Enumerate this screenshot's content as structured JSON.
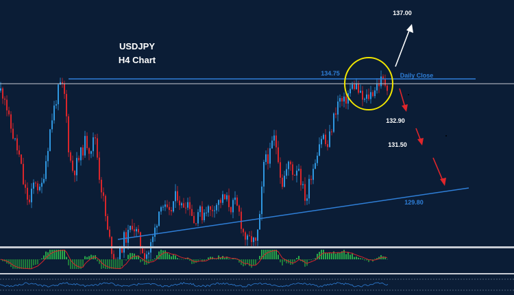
{
  "chart_data": {
    "type": "candlestick",
    "title": "USDJPY",
    "subtitle": "H4 Chart",
    "colors": {
      "background": "#0b1d36",
      "bull": "#2f97e0",
      "bear": "#d9262b",
      "resistance": "#2f7fd8",
      "trendline": "#2f7fd8",
      "circle": "#f2e600",
      "up_arrow": "#ffffff",
      "down_arrow": "#e0262b",
      "osc_pos": "#28a84a",
      "osc_neg": "#1f7a3a",
      "osc_signal": "#d9262b"
    },
    "price_path": [
      [
        0,
        134.45
      ],
      [
        6,
        134.3
      ],
      [
        12,
        133.5
      ],
      [
        20,
        132.9
      ],
      [
        28,
        132.3
      ],
      [
        34,
        131.4
      ],
      [
        42,
        130.9
      ],
      [
        50,
        131.7
      ],
      [
        58,
        131.2
      ],
      [
        66,
        132.3
      ],
      [
        74,
        133.5
      ],
      [
        82,
        134.3
      ],
      [
        88,
        134.65
      ],
      [
        94,
        134.2
      ],
      [
        100,
        132.4
      ],
      [
        106,
        131.9
      ],
      [
        112,
        132.2
      ],
      [
        118,
        132.5
      ],
      [
        124,
        132.9
      ],
      [
        130,
        132.6
      ],
      [
        138,
        133.0
      ],
      [
        144,
        131.8
      ],
      [
        150,
        131.0
      ],
      [
        156,
        130.0
      ],
      [
        162,
        129.5
      ],
      [
        168,
        129.1
      ],
      [
        174,
        129.35
      ],
      [
        180,
        129.8
      ],
      [
        186,
        129.9
      ],
      [
        192,
        130.3
      ],
      [
        198,
        130.0
      ],
      [
        204,
        129.6
      ],
      [
        210,
        129.35
      ],
      [
        216,
        129.4
      ],
      [
        222,
        129.8
      ],
      [
        228,
        130.4
      ],
      [
        234,
        131.0
      ],
      [
        240,
        130.7
      ],
      [
        246,
        130.5
      ],
      [
        252,
        130.95
      ],
      [
        258,
        131.2
      ],
      [
        264,
        130.8
      ],
      [
        270,
        131.0
      ],
      [
        276,
        130.9
      ],
      [
        282,
        130.3
      ],
      [
        288,
        130.7
      ],
      [
        294,
        130.55
      ],
      [
        300,
        130.8
      ],
      [
        306,
        130.65
      ],
      [
        312,
        130.9
      ],
      [
        318,
        130.95
      ],
      [
        324,
        131.05
      ],
      [
        330,
        131.0
      ],
      [
        336,
        130.8
      ],
      [
        342,
        130.9
      ],
      [
        348,
        130.6
      ],
      [
        354,
        130.0
      ],
      [
        360,
        129.7
      ],
      [
        366,
        129.8
      ],
      [
        372,
        129.6
      ],
      [
        378,
        130.4
      ],
      [
        382,
        131.6
      ],
      [
        386,
        132.5
      ],
      [
        392,
        132.3
      ],
      [
        398,
        133.0
      ],
      [
        404,
        132.6
      ],
      [
        410,
        131.5
      ],
      [
        416,
        131.9
      ],
      [
        422,
        132.2
      ],
      [
        428,
        131.8
      ],
      [
        434,
        132.2
      ],
      [
        440,
        131.4
      ],
      [
        446,
        131.0
      ],
      [
        452,
        131.8
      ],
      [
        458,
        132.2
      ],
      [
        464,
        132.8
      ],
      [
        470,
        133.1
      ],
      [
        476,
        132.6
      ],
      [
        482,
        133.2
      ],
      [
        488,
        133.8
      ],
      [
        494,
        134.2
      ],
      [
        500,
        134.0
      ],
      [
        506,
        134.3
      ],
      [
        512,
        134.55
      ],
      [
        518,
        134.65
      ],
      [
        524,
        134.3
      ],
      [
        530,
        134.1
      ],
      [
        536,
        134.25
      ],
      [
        542,
        134.4
      ],
      [
        548,
        134.6
      ],
      [
        554,
        134.75
      ],
      [
        560,
        134.7
      ],
      [
        566,
        134.6
      ]
    ],
    "levels": [
      {
        "value": 134.75,
        "label": "134.75",
        "note": "Daily Close"
      },
      {
        "value": 132.9,
        "label": "132.90"
      },
      {
        "value": 131.5,
        "label": "131.50"
      },
      {
        "value": 129.8,
        "label": "129.80"
      },
      {
        "value": 137.0,
        "label": "137.00"
      }
    ],
    "legend": []
  }
}
